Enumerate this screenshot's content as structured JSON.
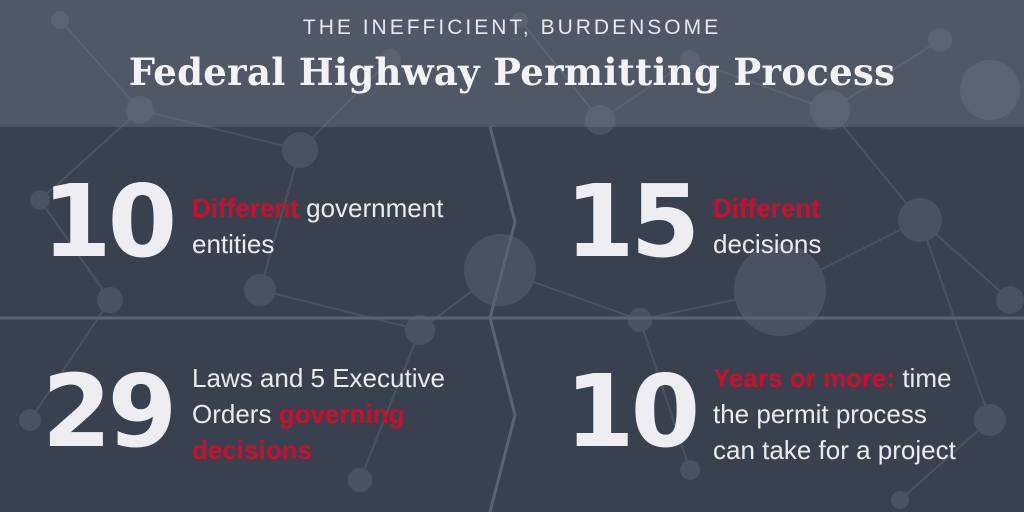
{
  "header": {
    "kicker": "THE INEFFICIENT, BURDENSOME",
    "title": "Federal Highway Permitting Process"
  },
  "colors": {
    "background": "#3a414e",
    "header_band": "#5a6372",
    "accent": "#c8102e",
    "text": "#eeeef2"
  },
  "stats": [
    {
      "number": "10",
      "highlight": "Different",
      "text_a": " government",
      "text_b": "entities"
    },
    {
      "number": "15",
      "highlight": "Different",
      "text_b": "decisions"
    },
    {
      "number": "29",
      "text_a": "Laws and 5 Executive",
      "text_b": "Orders ",
      "highlight": "governing",
      "text_c": "decisions"
    },
    {
      "number": "10",
      "highlight": "Years or more:",
      "text_a": " time",
      "text_b": "the permit process",
      "text_c": "can take for a project"
    }
  ]
}
